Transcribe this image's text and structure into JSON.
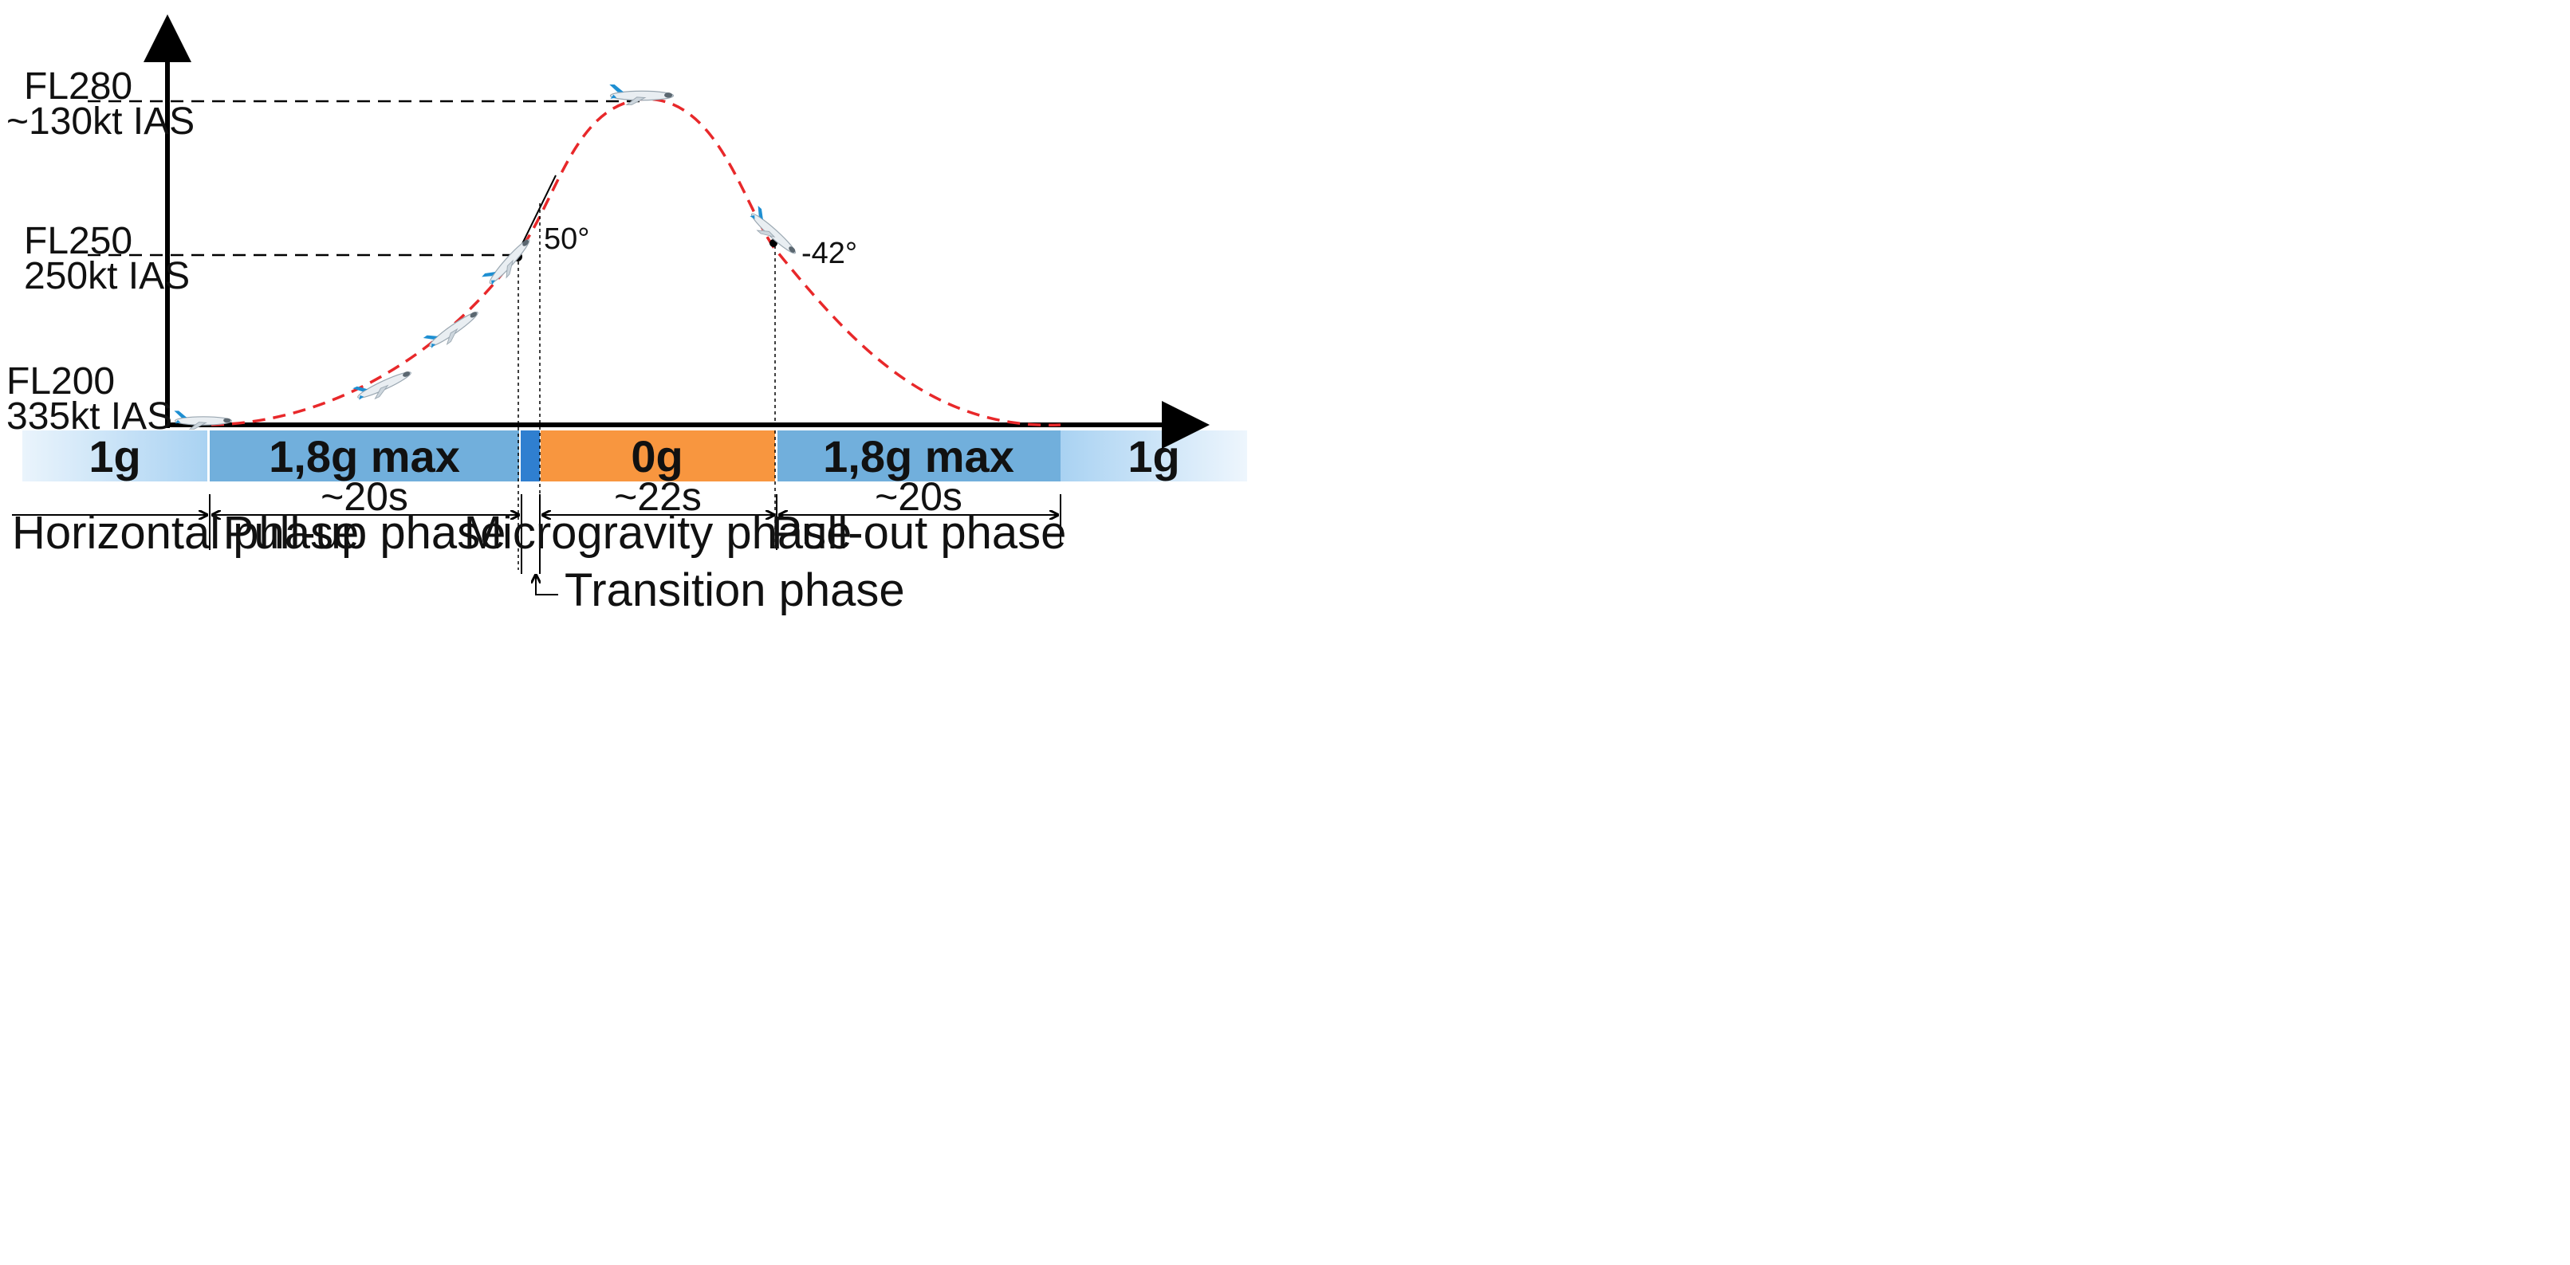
{
  "altitude_labels": [
    {
      "level": "FL280",
      "speed": "~130kt IAS"
    },
    {
      "level": "FL250",
      "speed": "250kt IAS"
    },
    {
      "level": "FL200",
      "speed": "335kt IAS"
    }
  ],
  "angles": {
    "pull_up": "50°",
    "pull_out": "-42°"
  },
  "bands": [
    {
      "label": "1g",
      "color": "#bcdcf5"
    },
    {
      "label": "1,8g max",
      "color": "#71afdc"
    },
    {
      "label": "",
      "color": "#2f7fd0"
    },
    {
      "label": "0g",
      "color": "#f8963f"
    },
    {
      "label": "1,8g max",
      "color": "#71afdc"
    },
    {
      "label": "1g",
      "color": "#bcdcf5"
    }
  ],
  "durations": [
    "~20s",
    "~22s",
    "~20s"
  ],
  "phases": [
    "Horizontal phase",
    "Pull-up phase",
    "Microgravity phase",
    "Pull-out phase",
    "Transition phase"
  ],
  "colors": {
    "trajectory": "#e8282a",
    "axis": "#000000",
    "aircraft_livery": "#1e8fd2"
  },
  "icons": [
    "aircraft-icon"
  ]
}
